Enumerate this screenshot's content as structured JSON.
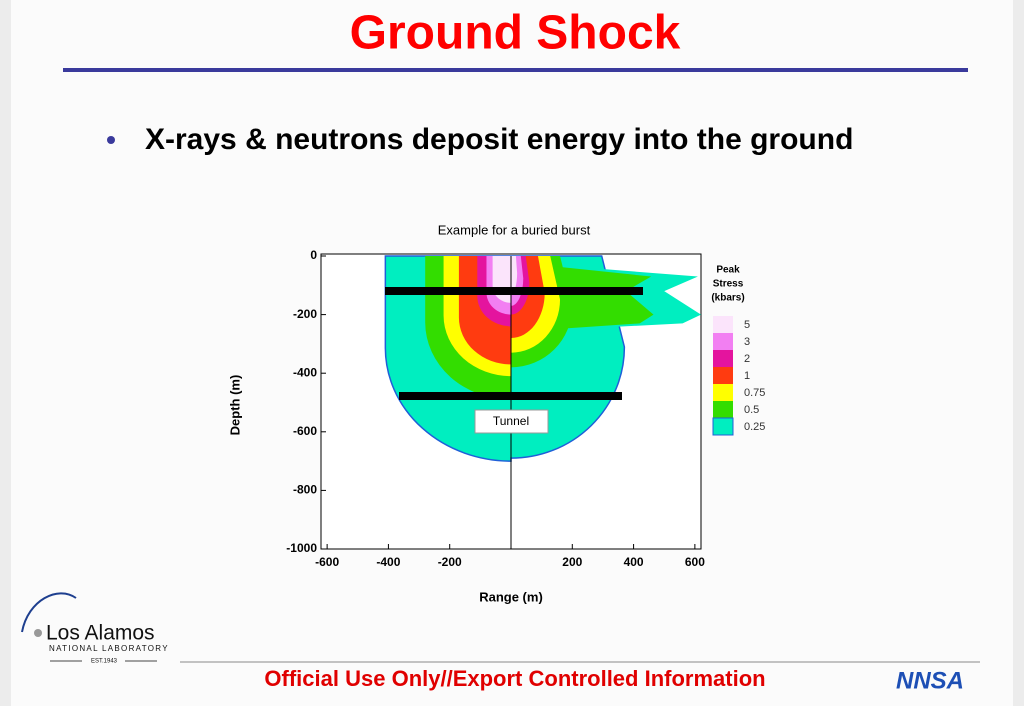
{
  "slide": {
    "title": "Ground Shock",
    "bullet": "X-rays & neutrons deposit energy into the ground",
    "logo_name": "Los Alamos",
    "logo_sub": "NATIONAL LABORATORY",
    "logo_est": "EST.1943",
    "footer": "Official Use Only//Export Controlled Information",
    "footer_logo": "NNSA"
  },
  "chart_data": {
    "type": "contour",
    "title": "Example for a buried burst",
    "x_label": "Range (m)",
    "y_label": "Depth (m)",
    "xlim": [
      -620,
      620
    ],
    "xticks": [
      -600,
      -400,
      -200,
      200,
      400,
      600
    ],
    "ylim": [
      -1000,
      0
    ],
    "yticks": [
      0,
      -200,
      -400,
      -600,
      -800,
      -1000
    ],
    "legend_title": [
      "Peak",
      "Stress",
      "(kbars)"
    ],
    "levels": [
      5,
      3,
      2,
      1,
      0.75,
      0.5,
      0.25
    ],
    "level_colors": [
      "#fbe4fb",
      "#f27ff2",
      "#e4149e",
      "#ff3b10",
      "#ffff00",
      "#33dd00",
      "#00eec0"
    ],
    "annotation": "Tunnel"
  }
}
